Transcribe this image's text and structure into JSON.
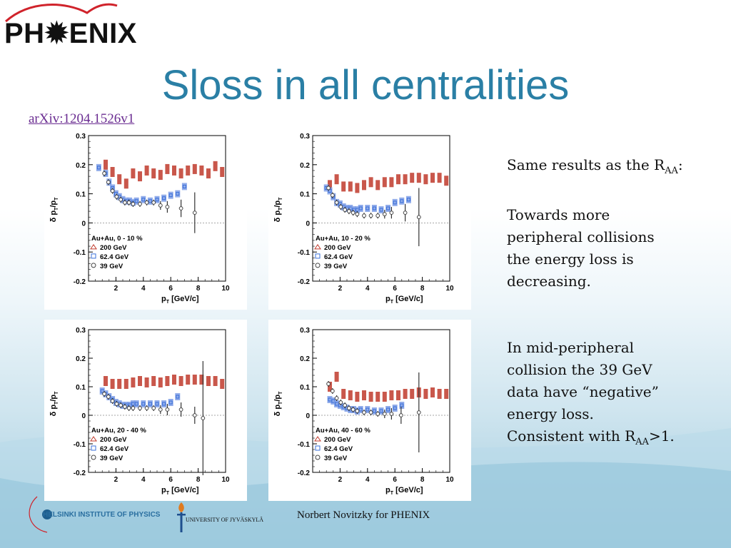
{
  "header": {
    "logo_text": "PH✹ENIX",
    "title": "Sloss in all centralities",
    "arxiv_link": "arXiv:1204.1526v1"
  },
  "side_text": {
    "p1_pre": "Same results as the R",
    "p1_sub": "AA",
    "p1_post": ":",
    "p2": "Towards more peripheral collisions the energy loss is decreasing.",
    "p3_pre": "In mid-peripheral collision the 39 GeV data have “negative” energy loss. Consistent with R",
    "p3_sub": "AA",
    "p3_post": ">1."
  },
  "footer": {
    "credit": "Norbert Novitzky for PHENIX",
    "hip": "HELSINKI INSTITUTE OF PHYSICS",
    "jyu": "UNIVERSITY OF JYVÄSKYLÄ"
  },
  "colors": {
    "title": "#2a7fa5",
    "s200": "#c0392b",
    "s62": "#3a6fd8",
    "s39": "#444444"
  },
  "chart_data": [
    {
      "type": "scatter",
      "xlabel": "p_T [GeV/c]",
      "ylabel": "δ p_T/p_T",
      "xlim": [
        0,
        10
      ],
      "ylim": [
        -0.2,
        0.3
      ],
      "xticks": [
        "2",
        "4",
        "6",
        "8",
        "10"
      ],
      "yticks": [
        "-0.2",
        "-0.1",
        "0",
        "0.1",
        "0.2",
        "0.3"
      ],
      "legend_title": "Au+Au, 0 - 10 %",
      "series": [
        {
          "name": "200 GeV",
          "marker": "triangle",
          "x": [
            1.25,
            1.75,
            2.25,
            2.75,
            3.25,
            3.75,
            4.25,
            4.75,
            5.25,
            5.75,
            6.25,
            6.75,
            7.25,
            7.75,
            8.25,
            8.75,
            9.25,
            9.75
          ],
          "y": [
            0.2,
            0.175,
            0.15,
            0.135,
            0.17,
            0.16,
            0.18,
            0.17,
            0.165,
            0.185,
            0.18,
            0.17,
            0.18,
            0.185,
            0.18,
            0.17,
            0.195,
            0.175
          ]
        },
        {
          "name": "62.4 GeV",
          "marker": "square",
          "x": [
            0.75,
            1.25,
            1.5,
            1.75,
            2.0,
            2.25,
            2.5,
            2.75,
            3.0,
            3.25,
            3.5,
            4.0,
            4.5,
            5.0,
            5.5,
            6.0,
            6.5,
            7.0
          ],
          "y": [
            0.19,
            0.17,
            0.14,
            0.12,
            0.1,
            0.09,
            0.08,
            0.075,
            0.075,
            0.07,
            0.075,
            0.08,
            0.075,
            0.08,
            0.085,
            0.095,
            0.1,
            0.125
          ]
        },
        {
          "name": "39 GeV",
          "marker": "circle",
          "x": [
            1.15,
            1.45,
            1.75,
            2.05,
            2.35,
            2.65,
            2.95,
            3.25,
            3.75,
            4.25,
            4.75,
            5.25,
            5.75,
            6.75,
            7.75
          ],
          "y": [
            0.17,
            0.14,
            0.11,
            0.09,
            0.08,
            0.07,
            0.07,
            0.065,
            0.065,
            0.07,
            0.07,
            0.06,
            0.055,
            0.05,
            0.035
          ],
          "err": [
            0.01,
            0.01,
            0.01,
            0.01,
            0.01,
            0.01,
            0.01,
            0.01,
            0.01,
            0.01,
            0.01,
            0.015,
            0.02,
            0.03,
            0.07
          ]
        }
      ]
    },
    {
      "type": "scatter",
      "xlabel": "p_T [GeV/c]",
      "ylabel": "δ p_T/p_T",
      "xlim": [
        0,
        10
      ],
      "ylim": [
        -0.2,
        0.3
      ],
      "xticks": [
        "2",
        "4",
        "6",
        "8",
        "10"
      ],
      "yticks": [
        "-0.2",
        "-0.1",
        "0",
        "0.1",
        "0.2",
        "0.3"
      ],
      "legend_title": "Au+Au, 10 - 20 %",
      "series": [
        {
          "name": "200 GeV",
          "marker": "triangle",
          "x": [
            1.25,
            1.75,
            2.25,
            2.75,
            3.25,
            3.75,
            4.25,
            4.75,
            5.25,
            5.75,
            6.25,
            6.75,
            7.25,
            7.75,
            8.25,
            8.75,
            9.25,
            9.75
          ],
          "y": [
            0.13,
            0.15,
            0.125,
            0.125,
            0.12,
            0.13,
            0.14,
            0.13,
            0.14,
            0.14,
            0.15,
            0.15,
            0.155,
            0.155,
            0.15,
            0.155,
            0.155,
            0.145
          ]
        },
        {
          "name": "62.4 GeV",
          "marker": "square",
          "x": [
            1.0,
            1.25,
            1.5,
            1.75,
            2.0,
            2.25,
            2.5,
            2.75,
            3.0,
            3.25,
            3.5,
            4.0,
            4.5,
            5.0,
            5.5,
            6.0,
            6.5,
            7.0
          ],
          "y": [
            0.12,
            0.11,
            0.09,
            0.07,
            0.065,
            0.055,
            0.05,
            0.05,
            0.045,
            0.045,
            0.05,
            0.05,
            0.05,
            0.045,
            0.05,
            0.07,
            0.075,
            0.08
          ]
        },
        {
          "name": "39 GeV",
          "marker": "circle",
          "x": [
            1.15,
            1.45,
            1.75,
            2.05,
            2.35,
            2.65,
            2.95,
            3.25,
            3.75,
            4.25,
            4.75,
            5.25,
            5.75,
            6.75,
            7.75
          ],
          "y": [
            0.12,
            0.095,
            0.07,
            0.055,
            0.045,
            0.04,
            0.035,
            0.03,
            0.025,
            0.025,
            0.025,
            0.03,
            0.035,
            0.035,
            0.02
          ],
          "err": [
            0.01,
            0.01,
            0.01,
            0.01,
            0.01,
            0.01,
            0.01,
            0.01,
            0.01,
            0.01,
            0.01,
            0.015,
            0.02,
            0.03,
            0.1
          ]
        }
      ]
    },
    {
      "type": "scatter",
      "xlabel": "p_T [GeV/c]",
      "ylabel": "δ p_T/p_T",
      "xlim": [
        0,
        10
      ],
      "ylim": [
        -0.2,
        0.3
      ],
      "xticks": [
        "2",
        "4",
        "6",
        "8",
        "10"
      ],
      "yticks": [
        "-0.2",
        "-0.1",
        "0",
        "0.1",
        "0.2",
        "0.3"
      ],
      "legend_title": "Au+Au, 20 - 40 %",
      "series": [
        {
          "name": "200 GeV",
          "marker": "triangle",
          "x": [
            1.25,
            1.75,
            2.25,
            2.75,
            3.25,
            3.75,
            4.25,
            4.75,
            5.25,
            5.75,
            6.25,
            6.75,
            7.25,
            7.75,
            8.25,
            8.75,
            9.25,
            9.75
          ],
          "y": [
            0.12,
            0.11,
            0.11,
            0.11,
            0.115,
            0.12,
            0.115,
            0.12,
            0.115,
            0.12,
            0.125,
            0.12,
            0.125,
            0.125,
            0.125,
            0.12,
            0.12,
            0.11
          ]
        },
        {
          "name": "62.4 GeV",
          "marker": "square",
          "x": [
            1.0,
            1.25,
            1.5,
            1.75,
            2.0,
            2.25,
            2.5,
            2.75,
            3.0,
            3.25,
            3.5,
            4.0,
            4.5,
            5.0,
            5.5,
            6.0,
            6.5
          ],
          "y": [
            0.085,
            0.075,
            0.065,
            0.055,
            0.045,
            0.04,
            0.035,
            0.035,
            0.035,
            0.04,
            0.04,
            0.04,
            0.04,
            0.04,
            0.04,
            0.045,
            0.065
          ]
        },
        {
          "name": "39 GeV",
          "marker": "circle",
          "x": [
            1.15,
            1.45,
            1.75,
            2.05,
            2.35,
            2.65,
            2.95,
            3.25,
            3.75,
            4.25,
            4.75,
            5.25,
            5.75,
            6.75,
            7.75,
            8.35
          ],
          "y": [
            0.075,
            0.065,
            0.05,
            0.04,
            0.035,
            0.03,
            0.025,
            0.025,
            0.025,
            0.025,
            0.025,
            0.02,
            0.02,
            0.02,
            0.0,
            -0.01
          ],
          "err": [
            0.01,
            0.01,
            0.01,
            0.01,
            0.01,
            0.01,
            0.01,
            0.01,
            0.01,
            0.01,
            0.01,
            0.015,
            0.02,
            0.025,
            0.03,
            0.2
          ]
        }
      ]
    },
    {
      "type": "scatter",
      "xlabel": "p_T [GeV/c]",
      "ylabel": "δ p_T/p_T",
      "xlim": [
        0,
        10
      ],
      "ylim": [
        -0.2,
        0.3
      ],
      "xticks": [
        "2",
        "4",
        "6",
        "8",
        "10"
      ],
      "yticks": [
        "-0.2",
        "-0.1",
        "0",
        "0.1",
        "0.2",
        "0.3"
      ],
      "legend_title": "Au+Au, 40 - 60 %",
      "series": [
        {
          "name": "200 GeV",
          "marker": "triangle",
          "x": [
            1.25,
            1.75,
            2.25,
            2.75,
            3.25,
            3.75,
            4.25,
            4.75,
            5.25,
            5.75,
            6.25,
            6.75,
            7.25,
            7.75,
            8.25,
            8.75,
            9.25,
            9.75
          ],
          "y": [
            0.1,
            0.135,
            0.075,
            0.07,
            0.065,
            0.07,
            0.065,
            0.065,
            0.065,
            0.07,
            0.07,
            0.075,
            0.075,
            0.08,
            0.075,
            0.08,
            0.075,
            0.075
          ]
        },
        {
          "name": "62.4 GeV",
          "marker": "square",
          "x": [
            1.25,
            1.5,
            1.75,
            2.0,
            2.25,
            2.5,
            2.75,
            3.0,
            3.25,
            3.5,
            4.0,
            4.5,
            5.0,
            5.5,
            6.0,
            6.5
          ],
          "y": [
            0.055,
            0.05,
            0.04,
            0.035,
            0.03,
            0.025,
            0.02,
            0.02,
            0.015,
            0.02,
            0.02,
            0.015,
            0.015,
            0.02,
            0.025,
            0.035
          ]
        },
        {
          "name": "39 GeV",
          "marker": "circle",
          "x": [
            1.15,
            1.45,
            1.75,
            2.05,
            2.35,
            2.65,
            2.95,
            3.25,
            3.75,
            4.25,
            4.75,
            5.25,
            5.75,
            6.45,
            7.75
          ],
          "y": [
            0.11,
            0.085,
            0.06,
            0.045,
            0.035,
            0.025,
            0.02,
            0.015,
            0.01,
            0.01,
            0.005,
            0.005,
            0.005,
            0.0,
            0.01
          ],
          "err": [
            0.01,
            0.01,
            0.01,
            0.01,
            0.01,
            0.01,
            0.01,
            0.01,
            0.01,
            0.01,
            0.01,
            0.015,
            0.02,
            0.03,
            0.14
          ]
        }
      ]
    }
  ]
}
